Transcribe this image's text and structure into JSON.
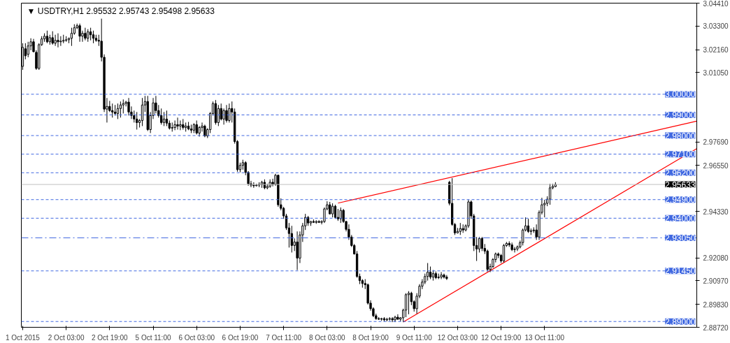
{
  "chart_data": {
    "type": "candlestick",
    "title": "▼ USDTRY,H1  2.95532 2.95743 2.95498 2.95633",
    "ylim": [
      2.8872,
      3.0441
    ],
    "yticks": [
      {
        "value": 3.0441,
        "label": "3.04410"
      },
      {
        "value": 3.033,
        "label": "3.03300"
      },
      {
        "value": 3.0216,
        "label": "3.02160"
      },
      {
        "value": 3.0105,
        "label": "3.01050"
      },
      {
        "value": 2.9769,
        "label": "2.97690"
      },
      {
        "value": 2.9655,
        "label": "2.96550"
      },
      {
        "value": 2.9433,
        "label": "2.94330"
      },
      {
        "value": 2.9208,
        "label": "2.92080"
      },
      {
        "value": 2.9097,
        "label": "2.90970"
      },
      {
        "value": 2.8983,
        "label": "2.89830"
      },
      {
        "value": 2.8872,
        "label": "2.88720"
      }
    ],
    "categories": [
      "1 Oct 2015",
      null,
      null,
      null,
      null,
      null,
      null,
      null,
      null,
      null,
      null,
      null,
      null,
      null,
      null,
      null,
      "2 Oct 03:00",
      null,
      null,
      null,
      null,
      null,
      null,
      null,
      null,
      null,
      null,
      null,
      null,
      null,
      null,
      null,
      "2 Oct 19:00",
      null,
      null,
      null,
      null,
      null,
      null,
      null,
      null,
      null,
      null,
      null,
      null,
      null,
      null,
      null,
      "5 Oct 11:00",
      null,
      null,
      null,
      null,
      null,
      null,
      null,
      null,
      null,
      null,
      null,
      null,
      null,
      null,
      null,
      "6 Oct 03:00",
      null,
      null,
      null,
      null,
      null,
      null,
      null,
      null,
      null,
      null,
      null,
      null,
      null,
      null,
      null,
      "6 Oct 19:00",
      null,
      null,
      null,
      null,
      null,
      null,
      null,
      null,
      null,
      null,
      null,
      null,
      null,
      null,
      null,
      "7 Oct 11:00",
      null,
      null,
      null,
      null,
      null,
      null,
      null,
      null,
      null,
      null,
      null,
      null,
      null,
      null,
      null,
      "8 Oct 03:00",
      null,
      null,
      null,
      null,
      null,
      null,
      null,
      null,
      null,
      null,
      null,
      null,
      null,
      null,
      null,
      "8 Oct 19:00",
      null,
      null,
      null,
      null,
      null,
      null,
      null,
      null,
      null,
      null,
      null,
      null,
      null,
      null,
      null,
      "9 Oct 11:00",
      null,
      null,
      null,
      null,
      null,
      null,
      null,
      null,
      null,
      null,
      null,
      null,
      null,
      null,
      null,
      "12 Oct 03:00",
      null,
      null,
      null,
      null,
      null,
      null,
      null,
      null,
      null,
      null,
      null,
      null,
      null,
      null,
      null,
      "12 Oct 19:00",
      null,
      null,
      null,
      null,
      null,
      null,
      null,
      null,
      null,
      null,
      null,
      null,
      null,
      null,
      null,
      "13 Oct 11:00",
      null,
      null,
      null,
      null,
      null,
      null,
      null,
      null,
      null,
      null,
      null,
      null,
      null,
      null,
      null,
      null,
      null,
      null,
      null,
      null,
      null,
      null,
      null,
      null,
      null,
      null,
      null,
      null,
      null,
      null,
      null,
      null,
      null,
      null,
      null,
      null,
      null,
      null,
      null,
      null,
      null,
      null,
      null,
      null,
      null,
      null,
      null,
      null,
      null,
      null,
      null,
      null,
      null,
      null,
      null,
      null
    ],
    "ohlc": [
      [
        3.0135,
        3.0247,
        3.0118,
        3.0227
      ],
      [
        3.022,
        3.0247,
        3.0169,
        3.0186
      ],
      [
        3.0193,
        3.0254,
        3.0179,
        3.0234
      ],
      [
        3.0234,
        3.0271,
        3.0213,
        3.0254
      ],
      [
        3.0254,
        3.0268,
        3.0203,
        3.0206
      ],
      [
        3.0203,
        3.0213,
        3.0118,
        3.0125
      ],
      [
        3.0125,
        3.0247,
        3.0118,
        3.024
      ],
      [
        3.024,
        3.0281,
        3.0234,
        3.0268
      ],
      [
        3.0268,
        3.0295,
        3.0254,
        3.0281
      ],
      [
        3.0281,
        3.0308,
        3.0247,
        3.0254
      ],
      [
        3.0254,
        3.0288,
        3.024,
        3.0274
      ],
      [
        3.0274,
        3.0305,
        3.024,
        3.0247
      ],
      [
        3.0247,
        3.0288,
        3.0234,
        3.0261
      ],
      [
        3.0261,
        3.0295,
        3.0227,
        3.0254
      ],
      [
        3.0254,
        3.0281,
        3.0234,
        3.0257
      ],
      [
        3.0257,
        3.0288,
        3.0247,
        3.0261
      ],
      [
        3.0261,
        3.0281,
        3.0254,
        3.0264
      ],
      [
        3.0264,
        3.0274,
        3.0247,
        3.0271
      ],
      [
        3.0271,
        3.0322,
        3.0234,
        3.0295
      ],
      [
        3.0295,
        3.0339,
        3.0288,
        3.0322
      ],
      [
        3.0322,
        3.0342,
        3.0315,
        3.0332
      ],
      [
        3.0332,
        3.0342,
        3.0254,
        3.0281
      ],
      [
        3.0281,
        3.0308,
        3.0254,
        3.0295
      ],
      [
        3.0295,
        3.0322,
        3.0261,
        3.0271
      ],
      [
        3.0271,
        3.0315,
        3.0254,
        3.0302
      ],
      [
        3.0302,
        3.0322,
        3.0261,
        3.0288
      ],
      [
        3.0288,
        3.0308,
        3.0247,
        3.0271
      ],
      [
        3.0271,
        3.0288,
        3.0254,
        3.0261
      ],
      [
        3.0261,
        3.0288,
        3.0234,
        3.0257
      ],
      [
        3.0257,
        3.0366,
        3.0159,
        3.0179
      ],
      [
        3.0179,
        3.0193,
        2.9914,
        2.9928
      ],
      [
        2.9928,
        2.9982,
        2.9863,
        2.9941
      ],
      [
        2.9941,
        2.9968,
        2.9914,
        2.9921
      ],
      [
        2.9921,
        2.9955,
        2.9887,
        2.9914
      ],
      [
        2.9914,
        2.9948,
        2.9897,
        2.9907
      ],
      [
        2.9907,
        2.9955,
        2.988,
        2.9931
      ],
      [
        2.9931,
        2.9965,
        2.9887,
        2.9948
      ],
      [
        2.9948,
        2.9975,
        2.9907,
        2.9955
      ],
      [
        2.9955,
        2.9968,
        2.9941,
        2.9962
      ],
      [
        2.9962,
        2.9982,
        2.9897,
        2.9914
      ],
      [
        2.9914,
        2.9941,
        2.988,
        2.9897
      ],
      [
        2.9897,
        2.9921,
        2.9863,
        2.988
      ],
      [
        2.988,
        2.9914,
        2.9829,
        2.9863
      ],
      [
        2.9863,
        2.988,
        2.9839,
        2.9873
      ],
      [
        2.9873,
        2.9982,
        2.9846,
        2.9948
      ],
      [
        2.9948,
        2.9992,
        2.9914,
        2.9965
      ],
      [
        2.9965,
        2.9992,
        2.9822,
        2.9829
      ],
      [
        2.9829,
        2.9914,
        2.9812,
        2.9897
      ],
      [
        2.9897,
        2.9982,
        2.988,
        2.9958
      ],
      [
        2.9958,
        2.9992,
        2.9907,
        2.9921
      ],
      [
        2.9921,
        2.9948,
        2.9887,
        2.9897
      ],
      [
        2.9897,
        2.9931,
        2.9853,
        2.9863
      ],
      [
        2.9863,
        2.9914,
        2.9846,
        2.988
      ],
      [
        2.988,
        2.9921,
        2.9846,
        2.986
      ],
      [
        2.986,
        2.9873,
        2.9829,
        2.9836
      ],
      [
        2.9836,
        2.9863,
        2.9819,
        2.9839
      ],
      [
        2.9839,
        2.9873,
        2.9826,
        2.9853
      ],
      [
        2.9853,
        2.9887,
        2.9829,
        2.9846
      ],
      [
        2.9846,
        2.9873,
        2.9826,
        2.9853
      ],
      [
        2.9853,
        2.988,
        2.9829,
        2.9839
      ],
      [
        2.9839,
        2.9863,
        2.9819,
        2.9846
      ],
      [
        2.9846,
        2.9866,
        2.9826,
        2.9832
      ],
      [
        2.9832,
        2.9853,
        2.9812,
        2.9826
      ],
      [
        2.9826,
        2.986,
        2.9812,
        2.9853
      ],
      [
        2.9853,
        2.9873,
        2.9805,
        2.9812
      ],
      [
        2.9812,
        2.9846,
        2.9795,
        2.9839
      ],
      [
        2.9839,
        2.9863,
        2.9819,
        2.9846
      ],
      [
        2.9846,
        2.9853,
        2.9792,
        2.9798
      ],
      [
        2.9798,
        2.9836,
        2.9788,
        2.9829
      ],
      [
        2.9829,
        2.9914,
        2.9812,
        2.9907
      ],
      [
        2.9907,
        2.9965,
        2.9897,
        2.9955
      ],
      [
        2.9955,
        2.9972,
        2.9853,
        2.9863
      ],
      [
        2.9863,
        2.9948,
        2.9846,
        2.9931
      ],
      [
        2.9931,
        2.9955,
        2.9873,
        2.988
      ],
      [
        2.988,
        2.9931,
        2.9853,
        2.9921
      ],
      [
        2.9921,
        2.9948,
        2.9863,
        2.9873
      ],
      [
        2.9873,
        2.9955,
        2.9863,
        2.9931
      ],
      [
        2.9931,
        2.9965,
        2.9863,
        2.9914
      ],
      [
        2.9914,
        2.9931,
        2.9761,
        2.9771
      ],
      [
        2.9771,
        2.9778,
        2.9625,
        2.9635
      ],
      [
        2.9635,
        2.9669,
        2.9622,
        2.9656
      ],
      [
        2.9656,
        2.9683,
        2.9635,
        2.9669
      ],
      [
        2.9669,
        2.9676,
        2.9608,
        2.9622
      ],
      [
        2.9622,
        2.9628,
        2.9557,
        2.9567
      ],
      [
        2.9567,
        2.9581,
        2.955,
        2.956
      ],
      [
        2.956,
        2.9574,
        2.9547,
        2.9557
      ],
      [
        2.9557,
        2.9567,
        2.9554,
        2.956
      ],
      [
        2.956,
        2.9574,
        2.955,
        2.9564
      ],
      [
        2.9564,
        2.9581,
        2.9547,
        2.9574
      ],
      [
        2.9574,
        2.9588,
        2.954,
        2.9547
      ],
      [
        2.9547,
        2.9567,
        2.954,
        2.9554
      ],
      [
        2.9554,
        2.9588,
        2.9547,
        2.9574
      ],
      [
        2.9574,
        2.9591,
        2.9554,
        2.9564
      ],
      [
        2.9564,
        2.9615,
        2.9557,
        2.9608
      ],
      [
        2.9608,
        2.9611,
        2.9455,
        2.9465
      ],
      [
        2.9465,
        2.9496,
        2.9438,
        2.9448
      ],
      [
        2.9448,
        2.9455,
        2.9397,
        2.9411
      ],
      [
        2.9411,
        2.9421,
        2.9343,
        2.9353
      ],
      [
        2.9353,
        2.9377,
        2.9258,
        2.9326
      ],
      [
        2.9326,
        2.9363,
        2.9234,
        2.9268
      ],
      [
        2.9268,
        2.9302,
        2.9241,
        2.9285
      ],
      [
        2.9285,
        2.9336,
        2.9149,
        2.9207
      ],
      [
        2.9207,
        2.9336,
        2.9183,
        2.9319
      ],
      [
        2.9319,
        2.9377,
        2.9285,
        2.9363
      ],
      [
        2.9363,
        2.9421,
        2.9343,
        2.9404
      ],
      [
        2.9404,
        2.9411,
        2.9363,
        2.9377
      ],
      [
        2.9377,
        2.9387,
        2.9363,
        2.9384
      ],
      [
        2.9384,
        2.9394,
        2.9377,
        2.938
      ],
      [
        2.938,
        2.939,
        2.9373,
        2.9384
      ],
      [
        2.9384,
        2.939,
        2.9377,
        2.938
      ],
      [
        2.938,
        2.939,
        2.937,
        2.9384
      ],
      [
        2.9384,
        2.9452,
        2.9377,
        2.9445
      ],
      [
        2.9445,
        2.9482,
        2.9438,
        2.9465
      ],
      [
        2.9465,
        2.9479,
        2.9418,
        2.9421
      ],
      [
        2.9421,
        2.9472,
        2.9404,
        2.9458
      ],
      [
        2.9458,
        2.9465,
        2.9397,
        2.9404
      ],
      [
        2.9404,
        2.9445,
        2.9387,
        2.9397
      ],
      [
        2.9397,
        2.9452,
        2.9377,
        2.9438
      ],
      [
        2.9438,
        2.9445,
        2.9377,
        2.9384
      ],
      [
        2.9384,
        2.9387,
        2.9336,
        2.9346
      ],
      [
        2.9346,
        2.937,
        2.9295,
        2.9309
      ],
      [
        2.9309,
        2.9319,
        2.9261,
        2.9268
      ],
      [
        2.9268,
        2.9275,
        2.9224,
        2.9227
      ],
      [
        2.9227,
        2.9241,
        2.9112,
        2.9118
      ],
      [
        2.9118,
        2.9132,
        2.9081,
        2.9098
      ],
      [
        2.9098,
        2.9105,
        2.9064,
        2.9084
      ],
      [
        2.9084,
        2.9105,
        2.9057,
        2.9078
      ],
      [
        2.9078,
        2.9084,
        2.8982,
        2.8989
      ],
      [
        2.8989,
        2.9003,
        2.8952,
        2.8962
      ],
      [
        2.8962,
        2.8969,
        2.8921,
        2.8928
      ],
      [
        2.8928,
        2.8938,
        2.8908,
        2.8914
      ],
      [
        2.8914,
        2.8921,
        2.8908,
        2.8911
      ],
      [
        2.8911,
        2.8918,
        2.8904,
        2.8914
      ],
      [
        2.8914,
        2.8921,
        2.8901,
        2.8908
      ],
      [
        2.8908,
        2.8918,
        2.8901,
        2.8911
      ],
      [
        2.8911,
        2.8921,
        2.8904,
        2.8914
      ],
      [
        2.8914,
        2.8921,
        2.8897,
        2.8908
      ],
      [
        2.8908,
        2.8928,
        2.8897,
        2.8921
      ],
      [
        2.8921,
        2.8935,
        2.8908,
        2.8911
      ],
      [
        2.8911,
        2.8921,
        2.8901,
        2.8918
      ],
      [
        2.8918,
        2.8962,
        2.8897,
        2.8955
      ],
      [
        2.8955,
        2.9037,
        2.8921,
        2.903
      ],
      [
        2.903,
        2.9047,
        2.8935,
        2.9037
      ],
      [
        2.9037,
        2.9044,
        2.8979,
        2.8996
      ],
      [
        2.8996,
        2.9003,
        2.8948,
        2.8962
      ],
      [
        2.8962,
        2.9037,
        2.8938,
        2.9023
      ],
      [
        2.9023,
        2.9081,
        2.9013,
        2.9071
      ],
      [
        2.9071,
        2.9105,
        2.9057,
        2.9091
      ],
      [
        2.9091,
        2.9132,
        2.9081,
        2.9118
      ],
      [
        2.9118,
        2.9183,
        2.9098,
        2.9139
      ],
      [
        2.9139,
        2.9166,
        2.9105,
        2.9115
      ],
      [
        2.9115,
        2.9149,
        2.9098,
        2.9132
      ],
      [
        2.9132,
        2.9142,
        2.9105,
        2.9112
      ],
      [
        2.9112,
        2.9132,
        2.9105,
        2.9115
      ],
      [
        2.9115,
        2.9139,
        2.9105,
        2.9125
      ],
      [
        2.9125,
        2.9132,
        2.9108,
        2.9115
      ],
      [
        2.9115,
        2.9125,
        2.9101,
        2.9108
      ],
      [
        2.9574,
        2.9581,
        2.9462,
        2.9472
      ],
      [
        2.9472,
        2.9594,
        2.9363,
        2.937
      ],
      [
        2.937,
        2.9377,
        2.9319,
        2.9329
      ],
      [
        2.9329,
        2.9353,
        2.9326,
        2.9336
      ],
      [
        2.9336,
        2.9377,
        2.9319,
        2.935
      ],
      [
        2.935,
        2.937,
        2.9329,
        2.9343
      ],
      [
        2.9343,
        2.937,
        2.9336,
        2.9363
      ],
      [
        2.9363,
        2.9489,
        2.9353,
        2.9479
      ],
      [
        2.9479,
        2.9486,
        2.9397,
        2.9411
      ],
      [
        2.9411,
        2.9421,
        2.9241,
        2.9268
      ],
      [
        2.9268,
        2.9309,
        2.9193,
        2.9251
      ],
      [
        2.9251,
        2.9309,
        2.9234,
        2.9302
      ],
      [
        2.9302,
        2.9309,
        2.9241,
        2.9254
      ],
      [
        2.9254,
        2.9275,
        2.9227,
        2.9241
      ],
      [
        2.9241,
        2.9248,
        2.9142,
        2.9152
      ],
      [
        2.9152,
        2.918,
        2.9139,
        2.9166
      ],
      [
        2.9166,
        2.9207,
        2.9159,
        2.92
      ],
      [
        2.92,
        2.9234,
        2.9186,
        2.9227
      ],
      [
        2.9227,
        2.9234,
        2.9207,
        2.922
      ],
      [
        2.922,
        2.9227,
        2.9183,
        2.9193
      ],
      [
        2.9193,
        2.9275,
        2.9186,
        2.9268
      ],
      [
        2.9268,
        2.9285,
        2.9261,
        2.9278
      ],
      [
        2.9278,
        2.9288,
        2.9261,
        2.9271
      ],
      [
        2.9271,
        2.9282,
        2.9241,
        2.9248
      ],
      [
        2.9248,
        2.9261,
        2.9234,
        2.9251
      ],
      [
        2.9251,
        2.9268,
        2.9241,
        2.9261
      ],
      [
        2.9261,
        2.9292,
        2.9254,
        2.9282
      ],
      [
        2.9282,
        2.935,
        2.9268,
        2.9343
      ],
      [
        2.9343,
        2.9404,
        2.9336,
        2.9363
      ],
      [
        2.9363,
        2.9397,
        2.9329,
        2.9336
      ],
      [
        2.9336,
        2.935,
        2.9319,
        2.9339
      ],
      [
        2.9339,
        2.9356,
        2.9329,
        2.9343
      ],
      [
        2.9343,
        2.937,
        2.9295,
        2.9309
      ],
      [
        2.9309,
        2.9438,
        2.9295,
        2.9428
      ],
      [
        2.9428,
        2.9499,
        2.9418,
        2.9465
      ],
      [
        2.9465,
        2.9489,
        2.9404,
        2.9472
      ],
      [
        2.9472,
        2.9506,
        2.9458,
        2.9492
      ],
      [
        2.9492,
        2.9567,
        2.9465,
        2.9547
      ],
      [
        2.9547,
        2.9567,
        2.954,
        2.9554
      ],
      [
        2.95532,
        2.95743,
        2.95498,
        2.95633
      ],
      null,
      null,
      null,
      null,
      null,
      null,
      null,
      null,
      null,
      null,
      null,
      null,
      null,
      null,
      null,
      null,
      null,
      null,
      null,
      null,
      null,
      null,
      null,
      null,
      null,
      null,
      null,
      null,
      null,
      null,
      null,
      null,
      null,
      null,
      null,
      null,
      null,
      null,
      null,
      null,
      null,
      null,
      null,
      null,
      null,
      null,
      null,
      null,
      null,
      null,
      null,
      null
    ],
    "series": [
      {
        "type": "line",
        "color": "#ff0000",
        "values": [
          null,
          null,
          null,
          null,
          null,
          null,
          null,
          null,
          null,
          null,
          null,
          null,
          null,
          null,
          null,
          null,
          null,
          null,
          null,
          null,
          null,
          null,
          null,
          null,
          null,
          null,
          null,
          null,
          null,
          null,
          null,
          null,
          null,
          null,
          null,
          null,
          null,
          null,
          null,
          null,
          null,
          null,
          null,
          null,
          null,
          null,
          null,
          null,
          null,
          null,
          null,
          null,
          null,
          null,
          null,
          null,
          null,
          null,
          null,
          null,
          null,
          null,
          null,
          null,
          null,
          null,
          null,
          null,
          null,
          null,
          null,
          null,
          null,
          null,
          null,
          null,
          null,
          null,
          null,
          null,
          null,
          null,
          null,
          null,
          null,
          null,
          null,
          null,
          null,
          null,
          null,
          null,
          null,
          null,
          null,
          null,
          null,
          null,
          null,
          null,
          null,
          null,
          null,
          null,
          null,
          null,
          null,
          null,
          null,
          null,
          null,
          null,
          null,
          null,
          null,
          null,
          2.9473,
          null,
          null,
          null,
          null,
          null,
          null,
          null,
          null,
          null,
          null,
          null,
          null,
          null,
          null,
          null,
          null,
          null,
          null,
          null,
          null,
          null,
          null,
          null,
          null,
          null,
          null,
          null,
          null,
          null,
          null,
          null,
          null,
          null,
          null,
          null,
          null,
          null,
          null,
          null,
          null,
          null,
          null,
          null,
          null,
          null,
          null,
          null,
          null,
          null,
          null,
          null,
          null,
          null,
          null,
          null,
          null,
          null,
          null,
          null,
          null,
          null,
          null,
          null,
          null,
          null,
          null,
          null,
          null,
          null,
          null,
          null,
          null,
          null,
          null,
          null,
          null,
          null,
          null,
          null,
          null,
          null,
          null,
          null,
          null,
          null,
          null,
          null,
          null,
          null,
          null,
          null,
          null,
          null,
          null,
          null,
          null,
          null,
          null,
          null,
          null,
          null,
          null,
          null,
          null,
          null,
          null,
          null,
          null,
          null,
          null,
          null,
          null,
          null,
          null,
          null,
          null,
          null,
          null,
          null,
          null,
          null,
          null,
          null,
          null,
          null,
          null,
          null,
          null,
          null,
          null,
          null,
          2.987
        ]
      },
      {
        "type": "line",
        "color": "#ff0000",
        "values": [
          null,
          null,
          null,
          null,
          null,
          null,
          null,
          null,
          null,
          null,
          null,
          null,
          null,
          null,
          null,
          null,
          null,
          null,
          null,
          null,
          null,
          null,
          null,
          null,
          null,
          null,
          null,
          null,
          null,
          null,
          null,
          null,
          null,
          null,
          null,
          null,
          null,
          null,
          null,
          null,
          null,
          null,
          null,
          null,
          null,
          null,
          null,
          null,
          null,
          null,
          null,
          null,
          null,
          null,
          null,
          null,
          null,
          null,
          null,
          null,
          null,
          null,
          null,
          null,
          null,
          null,
          null,
          null,
          null,
          null,
          null,
          null,
          null,
          null,
          null,
          null,
          null,
          null,
          null,
          null,
          null,
          null,
          null,
          null,
          null,
          null,
          null,
          null,
          null,
          null,
          null,
          null,
          null,
          null,
          null,
          null,
          null,
          null,
          null,
          null,
          null,
          null,
          null,
          null,
          null,
          null,
          null,
          null,
          null,
          null,
          null,
          null,
          null,
          null,
          null,
          null,
          null,
          null,
          null,
          null,
          null,
          null,
          null,
          null,
          null,
          null,
          null,
          null,
          null,
          null,
          null,
          null,
          null,
          null,
          null,
          null,
          null,
          null,
          null,
          null,
          2.8897,
          null,
          null,
          null,
          null,
          null,
          null,
          null,
          null,
          null,
          null,
          null,
          null,
          null,
          null,
          null,
          null,
          null,
          null,
          null,
          null,
          null,
          null,
          null,
          null,
          null,
          null,
          null,
          null,
          null,
          null,
          null,
          null,
          null,
          null,
          null,
          null,
          null,
          null,
          null,
          null,
          null,
          null,
          null,
          null,
          null,
          null,
          null,
          null,
          null,
          null,
          null,
          null,
          null,
          null,
          null,
          null,
          null,
          null,
          null,
          null,
          null,
          null,
          null,
          null,
          null,
          null,
          null,
          null,
          null,
          null,
          null,
          null,
          null,
          null,
          null,
          null,
          null,
          null,
          null,
          null,
          null,
          null,
          null,
          null,
          null,
          null,
          null,
          null,
          null,
          null,
          null,
          null,
          null,
          null,
          null,
          null,
          null,
          null,
          null,
          null,
          null,
          null,
          null,
          null,
          null,
          null,
          null,
          2.9737
        ]
      }
    ],
    "ref_lines": [
      {
        "axis": "y",
        "value": 3.0,
        "label": "3.00000",
        "color": "#4169e1",
        "line_style": "dashed"
      },
      {
        "axis": "y",
        "value": 2.99,
        "label": "2.99000",
        "color": "#4169e1",
        "line_style": "dashed"
      },
      {
        "axis": "y",
        "value": 2.98,
        "label": "2.98000",
        "color": "#4169e1",
        "line_style": "dashed"
      },
      {
        "axis": "y",
        "value": 2.971,
        "label": "2.97100",
        "color": "#4169e1",
        "line_style": "dashed"
      },
      {
        "axis": "y",
        "value": 2.962,
        "label": "2.96200",
        "color": "#4169e1",
        "line_style": "dashed"
      },
      {
        "axis": "y",
        "value": 2.95633,
        "label": "2.95633",
        "color": "#c0c0c0",
        "line_style": "solid"
      },
      {
        "axis": "y",
        "value": 2.949,
        "label": "2.94900",
        "color": "#4169e1",
        "line_style": "dashed"
      },
      {
        "axis": "y",
        "value": 2.94,
        "label": "2.94000",
        "color": "#4169e1",
        "line_style": "dashed"
      },
      {
        "axis": "y",
        "value": 2.9305,
        "label": "2.93050",
        "color": "#4169e1",
        "line_style": "dashdot"
      },
      {
        "axis": "y",
        "value": 2.9145,
        "label": "2.91450",
        "color": "#4169e1",
        "line_style": "dashed"
      },
      {
        "axis": "y",
        "value": 2.89,
        "label": "2.89000",
        "color": "#4169e1",
        "line_style": "dashed"
      }
    ],
    "grid": false
  }
}
